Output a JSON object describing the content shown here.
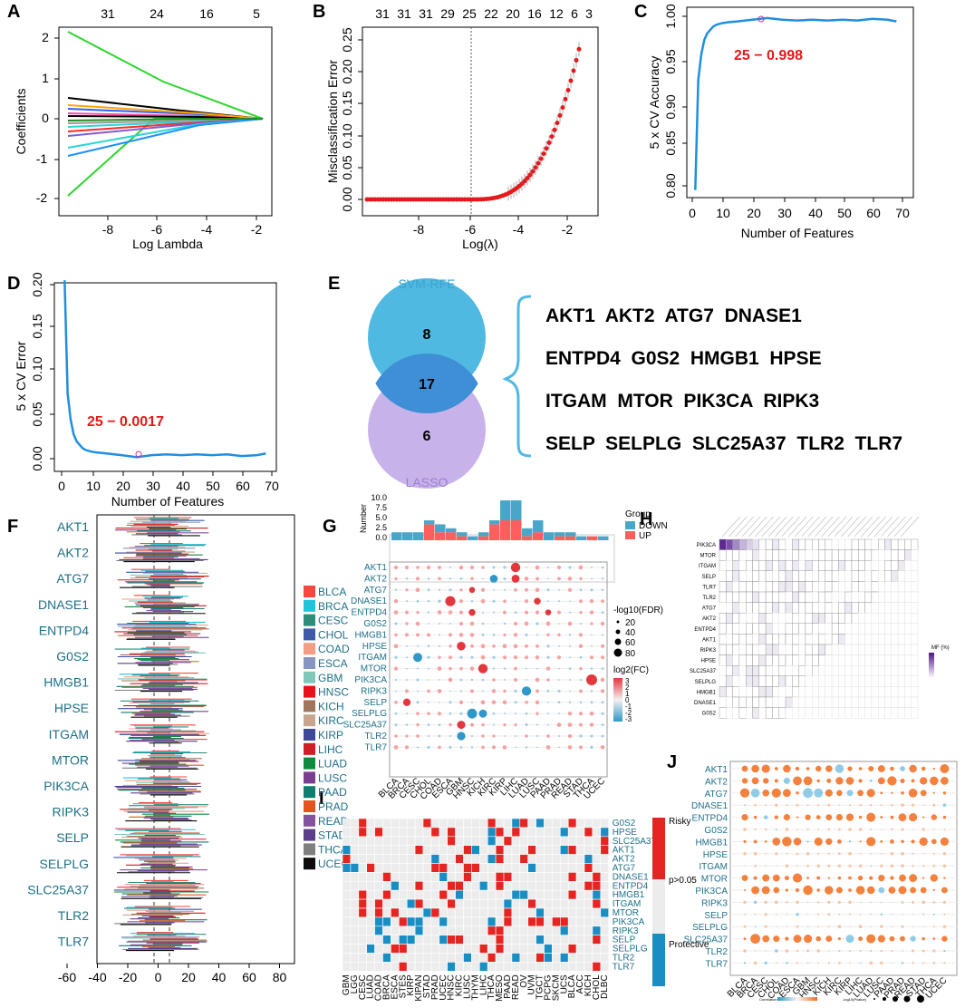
{
  "panels": {
    "A": "A",
    "B": "B",
    "C": "C",
    "D": "D",
    "E": "E",
    "F": "F",
    "G": "G",
    "H": "H",
    "I": "I",
    "J": "J"
  },
  "panelA": {
    "ylabel": "Coefficients",
    "xlabel": "Log Lambda",
    "xticks": [
      "-8",
      "-6",
      "-4",
      "-2"
    ],
    "yticks": [
      "2",
      "1",
      "0",
      "-1",
      "-2"
    ],
    "top_ticks": [
      "31",
      "24",
      "16",
      "5"
    ]
  },
  "panelB": {
    "ylabel": "Misclassification Error",
    "xlabel": "Log(λ)",
    "xticks": [
      "-8",
      "-6",
      "-4",
      "-2"
    ],
    "yticks": [
      "0.00",
      "0.05",
      "0.10",
      "0.15",
      "0.20",
      "0.25"
    ],
    "top_ticks": [
      "31",
      "31",
      "31",
      "29",
      "25",
      "22",
      "20",
      "16",
      "12",
      "6",
      "3"
    ]
  },
  "panelC": {
    "ylabel": "5 x CV Accuracy",
    "xlabel": "Number of Features",
    "annotation": "25 − 0.998",
    "xticks": [
      "0",
      "10",
      "20",
      "30",
      "40",
      "50",
      "60",
      "70"
    ],
    "yticks": [
      "0.80",
      "0.85",
      "0.90",
      "0.95",
      "1.00"
    ]
  },
  "panelD": {
    "ylabel": "5 x CV Error",
    "xlabel": "Number of Features",
    "annotation": "25 − 0.0017",
    "xticks": [
      "0",
      "10",
      "20",
      "30",
      "40",
      "50",
      "60",
      "70"
    ],
    "yticks": [
      "0.00",
      "0.05",
      "0.10",
      "0.15",
      "0.20"
    ]
  },
  "panelE": {
    "svm_label": "SVM-RFE",
    "lasso_label": "LASSO",
    "svm_only": "8",
    "overlap": "17",
    "lasso_only": "6",
    "gene_rows": [
      "AKT1  AKT2  ATG7  DNASE1",
      "ENTPD4  G0S2  HMGB1  HPSE",
      "ITGAM  MTOR  PIK3CA  RIPK3",
      "SELP  SELPLG  SLC25A37  TLR2  TLR7"
    ]
  },
  "genes": [
    "AKT1",
    "AKT2",
    "ATG7",
    "DNASE1",
    "ENTPD4",
    "G0S2",
    "HMGB1",
    "HPSE",
    "ITGAM",
    "MTOR",
    "PIK3CA",
    "RIPK3",
    "SELP",
    "SELPLG",
    "SLC25A37",
    "TLR2",
    "TLR7"
  ],
  "panelF": {
    "xticks": [
      "-60",
      "-40",
      "-20",
      "0",
      "20",
      "40",
      "60",
      "80"
    ],
    "legend": [
      {
        "name": "BLCA",
        "color": "#f8473e"
      },
      {
        "name": "BRCA",
        "color": "#22c3dc"
      },
      {
        "name": "CESC",
        "color": "#2e8d7a"
      },
      {
        "name": "CHOL",
        "color": "#3f5aa8"
      },
      {
        "name": "COAD",
        "color": "#f59c84"
      },
      {
        "name": "ESCA",
        "color": "#8796c0"
      },
      {
        "name": "GBM",
        "color": "#7fc8b8"
      },
      {
        "name": "HNSC",
        "color": "#e8101b"
      },
      {
        "name": "KICH",
        "color": "#a0775c"
      },
      {
        "name": "KIRC",
        "color": "#c9a48e"
      },
      {
        "name": "KIRP",
        "color": "#3c4a9e"
      },
      {
        "name": "LIHC",
        "color": "#d01e26"
      },
      {
        "name": "LUAD",
        "color": "#0f8a3f"
      },
      {
        "name": "LUSC",
        "color": "#7b3d8f"
      },
      {
        "name": "PAAD",
        "color": "#0f7e70"
      },
      {
        "name": "PRAD",
        "color": "#e5531f"
      },
      {
        "name": "READ",
        "color": "#8552a0"
      },
      {
        "name": "STAD",
        "color": "#5b3f8a"
      },
      {
        "name": "THCA",
        "color": "#7f7f7f"
      },
      {
        "name": "UCEC",
        "color": "#0c0c0c"
      }
    ]
  },
  "panelG": {
    "ylabel": "Number",
    "yticks": [
      "0.0",
      "2.5",
      "5.0",
      "7.5",
      "10.0"
    ],
    "legend_title": "Group",
    "legend_down": "DOWN",
    "legend_up": "UP",
    "size_title": "-log10(FDR)",
    "size_values": [
      "20",
      "40",
      "60",
      "80"
    ],
    "color_title": "log2(FC)",
    "color_values": [
      "3",
      "2",
      "1",
      "0",
      "-1",
      "-2",
      "-3"
    ],
    "cancers": [
      "BLCA",
      "BRCA",
      "CESC",
      "CHOL",
      "COAD",
      "ESCA",
      "GBM",
      "HNSC",
      "KICH",
      "KIRC",
      "KIRP",
      "LIHC",
      "LUAD",
      "LUSC",
      "PAAD",
      "PRAD",
      "READ",
      "STAD",
      "THCA",
      "UCEC"
    ],
    "down": [
      2,
      2,
      2,
      1,
      2,
      1,
      1,
      1,
      1,
      1,
      5,
      5,
      2,
      3,
      2,
      1,
      1,
      1,
      0,
      1
    ],
    "up": [
      0,
      0,
      0,
      4,
      2,
      2,
      1,
      0,
      1,
      4,
      5,
      5,
      1,
      2,
      0,
      1,
      1,
      0,
      1,
      0
    ]
  },
  "panelH": {
    "legend_title": "MF (%)",
    "rows": [
      "PIK3CA",
      "MTOR",
      "ITGAM",
      "SELP",
      "TLR7",
      "TLR2",
      "ATG7",
      "AKT2",
      "ENTPD4",
      "AKT1",
      "RIPK3",
      "HPSE",
      "SLC25A37",
      "SELPLG",
      "HMGB1",
      "DNASE1",
      "G0S2"
    ]
  },
  "panelI": {
    "rows": [
      "G0S2",
      "HPSE",
      "SLC25A37",
      "AKT1",
      "AKT2",
      "ATG7",
      "DNASE1",
      "ENTPD4",
      "HMGB1",
      "ITGAM",
      "MTOR",
      "PIK3CA",
      "RIPK3",
      "SELP",
      "SELPLG",
      "TLR2",
      "TLR7"
    ],
    "cols": [
      "GBM",
      "LGG",
      "CESC",
      "LUAD",
      "COAD",
      "BRCA",
      "ESCA",
      "STES",
      "KIRP",
      "KIPAN",
      "STAD",
      "PRAD",
      "UCEC",
      "HNSC",
      "KIRC",
      "LUSC",
      "THYM",
      "LIHC",
      "THCA",
      "MESO",
      "PAAD",
      "READ",
      "OV",
      "UVM",
      "TGCT",
      "PCPG",
      "SKCM",
      "UCS",
      "BLCA",
      "ACC",
      "KICH",
      "CHOL",
      "DLBC"
    ],
    "legend_risky": "Risky",
    "legend_ns": "p>0.05",
    "legend_protective": "Protective",
    "colors": {
      "risky": "#e52521",
      "protective": "#1a8ec3",
      "ns": "#ececec"
    }
  },
  "panelJ": {
    "rows": [
      "AKT1",
      "AKT2",
      "ATG7",
      "DNASE1",
      "ENTPD4",
      "G0S2",
      "HMGB1",
      "HPSE",
      "ITGAM",
      "MTOR",
      "PIK3CA",
      "RIPK3",
      "SELP",
      "SELPLG",
      "SLC25A37",
      "TLR2",
      "TLR7"
    ],
    "cols": [
      "BLCA",
      "BRCA",
      "CESC",
      "CHOL",
      "COAD",
      "ESCA",
      "GBM",
      "HNSC",
      "KICH",
      "KIRC",
      "KIRP",
      "LIHC",
      "LUAD",
      "LUSC",
      "PAAD",
      "PRAD",
      "READ",
      "STAD",
      "THCA",
      "UCEC"
    ],
    "legend_corr": "Correlation",
    "legend_p": "-log10(Pvalue)"
  },
  "colors": {
    "teal_text": "#1e6f87",
    "accent_red": "#e31a1c",
    "line_blue": "#1f8fe0",
    "venn_svm": "#4fb9e2",
    "venn_lasso": "#c8b2ea",
    "venn_overlap": "#3f8fd6"
  },
  "chart_data": [
    {
      "type": "line",
      "title": "",
      "xlabel": "Number of Features",
      "ylabel": "5 x CV Accuracy",
      "xlim": [
        0,
        70
      ],
      "ylim": [
        0.79,
        1.0
      ],
      "x": [
        1,
        2,
        3,
        4,
        5,
        6,
        7,
        8,
        10,
        12,
        15,
        20,
        25,
        30,
        35,
        40,
        45,
        50,
        55,
        60,
        65,
        68
      ],
      "values": [
        0.795,
        0.925,
        0.955,
        0.972,
        0.98,
        0.984,
        0.988,
        0.99,
        0.992,
        0.993,
        0.994,
        0.996,
        0.998,
        0.996,
        0.995,
        0.996,
        0.995,
        0.996,
        0.995,
        0.997,
        0.996,
        0.994
      ]
    },
    {
      "type": "line",
      "title": "",
      "xlabel": "Number of Features",
      "ylabel": "5 x CV Error",
      "xlim": [
        0,
        70
      ],
      "ylim": [
        0,
        0.2
      ],
      "x": [
        1,
        2,
        3,
        4,
        5,
        6,
        7,
        8,
        10,
        12,
        15,
        20,
        25,
        30,
        35,
        40,
        45,
        50,
        55,
        60,
        65,
        68
      ],
      "values": [
        0.205,
        0.075,
        0.045,
        0.028,
        0.02,
        0.016,
        0.012,
        0.01,
        0.008,
        0.007,
        0.006,
        0.004,
        0.0017,
        0.004,
        0.005,
        0.004,
        0.005,
        0.004,
        0.005,
        0.003,
        0.004,
        0.006
      ]
    },
    {
      "type": "bar",
      "title": "",
      "ylabel": "Number",
      "categories": [
        "BLCA",
        "BRCA",
        "CESC",
        "CHOL",
        "COAD",
        "ESCA",
        "GBM",
        "HNSC",
        "KICH",
        "KIRC",
        "KIRP",
        "LIHC",
        "LUAD",
        "LUSC",
        "PAAD",
        "PRAD",
        "READ",
        "STAD",
        "THCA",
        "UCEC"
      ],
      "series": [
        {
          "name": "DOWN",
          "values": [
            2,
            2,
            2,
            1,
            2,
            1,
            1,
            1,
            1,
            1,
            5,
            5,
            2,
            3,
            2,
            1,
            1,
            1,
            0,
            1
          ]
        },
        {
          "name": "UP",
          "values": [
            0,
            0,
            0,
            4,
            2,
            2,
            1,
            0,
            1,
            4,
            5,
            5,
            1,
            2,
            0,
            1,
            1,
            0,
            1,
            0
          ]
        }
      ],
      "ylim": [
        0,
        10
      ]
    }
  ]
}
